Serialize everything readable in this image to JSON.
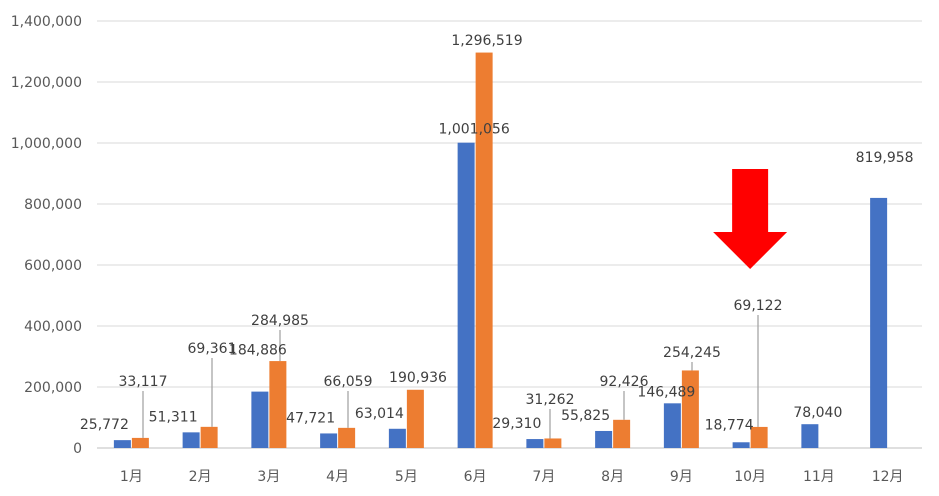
{
  "chart_data": {
    "type": "bar",
    "title": "",
    "xlabel": "",
    "ylabel": "",
    "ylim": [
      0,
      1400000
    ],
    "yticks": [
      0,
      200000,
      400000,
      600000,
      800000,
      1000000,
      1200000,
      1400000
    ],
    "ytick_labels": [
      "0",
      "200,000",
      "400,000",
      "600,000",
      "800,000",
      "1,000,000",
      "1,200,000",
      "1,400,000"
    ],
    "grid": true,
    "legend": "none",
    "categories": [
      "1月",
      "2月",
      "3月",
      "4月",
      "5月",
      "6月",
      "7月",
      "8月",
      "9月",
      "10月",
      "11月",
      "12月"
    ],
    "series": [
      {
        "name": "series-1",
        "color": "#4472C4",
        "values": [
          25772,
          51311,
          184886,
          47721,
          63014,
          1001056,
          29310,
          55825,
          146489,
          18774,
          78040,
          819958
        ],
        "labels": [
          "25,772",
          "51,311",
          "184,886",
          "47,721",
          "63,014",
          "1,001,056",
          "29,310",
          "55,825",
          "146,489",
          "18,774",
          "78,040",
          "819,958"
        ]
      },
      {
        "name": "series-2",
        "color": "#ED7D31",
        "values": [
          33117,
          69361,
          284985,
          66059,
          190936,
          1296519,
          31262,
          92426,
          254245,
          69122,
          null,
          null
        ],
        "labels": [
          "33,117",
          "69,361",
          "284,985",
          "66,059",
          "190,936",
          "1,296,519",
          "31,262",
          "92,426",
          "254,245",
          "69,122",
          "",
          ""
        ]
      }
    ],
    "annotations": [
      {
        "type": "arrow-down",
        "color": "#FF0000",
        "target_category": "10月"
      }
    ]
  }
}
